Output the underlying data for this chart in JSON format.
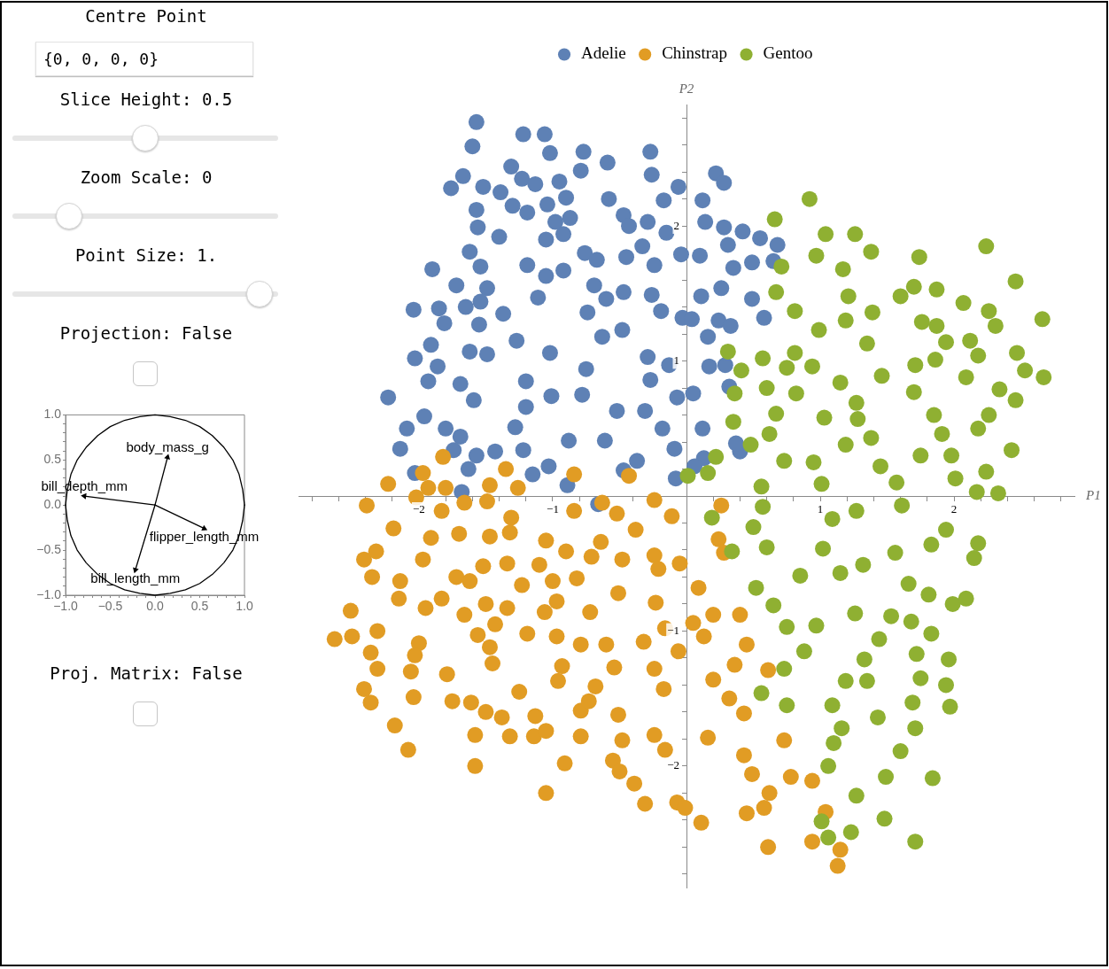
{
  "chart_data": [
    {
      "type": "other",
      "annotations": [
        "Centre Point",
        "{0, 0, 0, 0}",
        "Slice Height: 0.5",
        "Zoom Scale: 0",
        "Point Size: 1.",
        "Projection: False"
      ]
    },
    {
      "type": "line",
      "xlim": [
        -1,
        1
      ],
      "ylim": [
        -1,
        1
      ],
      "xticks": [
        {
          "value": -1,
          "label": "−1.0"
        },
        {
          "value": -0.9,
          "label": null
        },
        {
          "value": -0.8,
          "label": null
        },
        {
          "value": -0.7,
          "label": null
        },
        {
          "value": -0.6,
          "label": null
        },
        {
          "value": -0.5,
          "label": "−0.5"
        },
        {
          "value": -0.4,
          "label": null
        },
        {
          "value": -0.3,
          "label": null
        },
        {
          "value": -0.2,
          "label": null
        },
        {
          "value": -0.1,
          "label": null
        },
        {
          "value": 0,
          "label": "0.0"
        },
        {
          "value": 0.1,
          "label": null
        },
        {
          "value": 0.2,
          "label": null
        },
        {
          "value": 0.3,
          "label": null
        },
        {
          "value": 0.4,
          "label": null
        },
        0.5,
        {
          "value": 0.6,
          "label": null
        },
        {
          "value": 0.7,
          "label": null
        },
        {
          "value": 0.8,
          "label": null
        },
        {
          "value": 0.9,
          "label": null
        },
        {
          "value": 1,
          "label": "1.0"
        }
      ],
      "yticks": [
        {
          "value": -1,
          "label": "−1.0"
        },
        {
          "value": -0.9,
          "label": null
        },
        {
          "value": -0.8,
          "label": null
        },
        {
          "value": -0.7,
          "label": null
        },
        {
          "value": -0.6,
          "label": null
        },
        {
          "value": -0.5,
          "label": "−0.5"
        },
        {
          "value": -0.4,
          "label": null
        },
        {
          "value": -0.3,
          "label": null
        },
        {
          "value": -0.2,
          "label": null
        },
        {
          "value": -0.1,
          "label": null
        },
        {
          "value": 0,
          "label": "0.0"
        },
        {
          "value": 0.1,
          "label": null
        },
        {
          "value": 0.2,
          "label": null
        },
        {
          "value": 0.3,
          "label": null
        },
        {
          "value": 0.4,
          "label": null
        },
        0.5,
        {
          "value": 0.6,
          "label": null
        },
        {
          "value": 0.7,
          "label": null
        },
        {
          "value": 0.8,
          "label": null
        },
        {
          "value": 0.9,
          "label": null
        },
        {
          "value": 1,
          "label": "1.0"
        }
      ],
      "series": [
        {
          "color": "#000000",
          "x": [
            -1,
            -0.98,
            -0.94,
            -0.87,
            -0.77,
            -0.64,
            -0.5,
            -0.34,
            -0.17,
            0,
            0.17,
            0.34,
            0.5,
            0.64,
            0.77,
            0.87,
            0.94,
            0.98,
            1
          ],
          "values": [
            0,
            0.17,
            0.34,
            0.5,
            0.64,
            0.77,
            0.87,
            0.94,
            0.98,
            1,
            0.98,
            0.94,
            0.87,
            0.77,
            0.64,
            0.5,
            0.34,
            0.17,
            0
          ]
        },
        {
          "color": "#000000",
          "x": [
            -1,
            -0.98,
            -0.94,
            -0.87,
            -0.77,
            -0.64,
            -0.5,
            -0.34,
            -0.17,
            0,
            0.17,
            0.34,
            0.5,
            0.64,
            0.77,
            0.87,
            0.94,
            0.98,
            1
          ],
          "values": [
            0,
            -0.17,
            -0.34,
            -0.5,
            -0.64,
            -0.77,
            -0.87,
            -0.94,
            -0.98,
            -1,
            -0.98,
            -0.94,
            -0.87,
            -0.77,
            -0.64,
            -0.5,
            -0.34,
            -0.17,
            0
          ]
        },
        {
          "name": "body_mass_g",
          "color": "#000000",
          "x": [
            0,
            0.14
          ],
          "values": [
            0,
            0.53
          ]
        },
        {
          "name": "bill_depth_mm",
          "color": "#000000",
          "x": [
            0,
            -0.79
          ],
          "values": [
            0,
            0.1
          ]
        },
        {
          "name": "flipper_length_mm",
          "color": "#000000",
          "x": [
            0,
            0.55
          ],
          "values": [
            0,
            -0.26
          ]
        },
        {
          "name": "bill_length_mm",
          "color": "#000000",
          "x": [
            0,
            -0.22
          ],
          "values": [
            0,
            -0.72
          ]
        }
      ]
    },
    {
      "type": "other",
      "annotations": [
        "Proj. Matrix: False"
      ]
    },
    {
      "type": "scatter",
      "legend": "top",
      "marker": "circle",
      "xlabel": "P1",
      "ylabel": "P2",
      "xlim": [
        -2.9,
        2.9
      ],
      "ylim": [
        -2.9,
        2.9
      ],
      "xticks": [
        {
          "value": -2.8,
          "label": null
        },
        {
          "value": -2.6,
          "label": null
        },
        {
          "value": -2.4,
          "label": null
        },
        {
          "value": -2.2,
          "label": null
        },
        {
          "value": -2,
          "label": "−2"
        },
        {
          "value": -1.8,
          "label": null
        },
        {
          "value": -1.6,
          "label": null
        },
        {
          "value": -1.4,
          "label": null
        },
        {
          "value": -1.2,
          "label": null
        },
        {
          "value": -1,
          "label": "−1"
        },
        {
          "value": -0.8,
          "label": null
        },
        {
          "value": -0.6,
          "label": null
        },
        {
          "value": -0.4,
          "label": null
        },
        {
          "value": -0.2,
          "label": null
        },
        {
          "value": 0.2,
          "label": null
        },
        {
          "value": 0.4,
          "label": null
        },
        {
          "value": 0.6,
          "label": null
        },
        {
          "value": 0.8,
          "label": null
        },
        1,
        {
          "value": 1.2,
          "label": null
        },
        {
          "value": 1.4,
          "label": null
        },
        {
          "value": 1.6,
          "label": null
        },
        {
          "value": 1.8,
          "label": null
        },
        2,
        {
          "value": 2.2,
          "label": null
        },
        {
          "value": 2.4,
          "label": null
        },
        {
          "value": 2.6,
          "label": null
        },
        {
          "value": 2.8,
          "label": null
        }
      ],
      "yticks": [
        {
          "value": -2.8,
          "label": null
        },
        {
          "value": -2.6,
          "label": null
        },
        {
          "value": -2.4,
          "label": null
        },
        {
          "value": -2.2,
          "label": null
        },
        {
          "value": -2,
          "label": "−2"
        },
        {
          "value": -1.8,
          "label": null
        },
        {
          "value": -1.6,
          "label": null
        },
        {
          "value": -1.4,
          "label": null
        },
        {
          "value": -1.2,
          "label": null
        },
        {
          "value": -1,
          "label": "−1"
        },
        {
          "value": -0.8,
          "label": null
        },
        {
          "value": -0.6,
          "label": null
        },
        {
          "value": -0.4,
          "label": null
        },
        {
          "value": -0.2,
          "label": null
        },
        {
          "value": 0.2,
          "label": null
        },
        {
          "value": 0.4,
          "label": null
        },
        {
          "value": 0.6,
          "label": null
        },
        {
          "value": 0.8,
          "label": null
        },
        1,
        {
          "value": 1.2,
          "label": null
        },
        {
          "value": 1.4,
          "label": null
        },
        {
          "value": 1.6,
          "label": null
        },
        {
          "value": 1.8,
          "label": null
        },
        2,
        {
          "value": 2.2,
          "label": null
        },
        {
          "value": 2.4,
          "label": null
        },
        {
          "value": 2.6,
          "label": null
        },
        {
          "value": 2.8,
          "label": null
        }
      ],
      "series": [
        {
          "name": "Adelie",
          "color": "#5e81b5",
          "x": [
            -1.57,
            -1.6,
            -1.22,
            -1.06,
            -1.02,
            -0.77,
            -0.27,
            -0.59,
            -1.31,
            -0.79,
            -0.26,
            -1.67,
            -1.23,
            -1.76,
            -1.52,
            -1.39,
            -1.13,
            -0.95,
            -0.06,
            -1.57,
            -1.3,
            -1.19,
            -1.04,
            -0.9,
            -0.87,
            -0.58,
            -0.47,
            -0.17,
            -1.56,
            -1.4,
            -0.98,
            -0.92,
            -1.05,
            -0.43,
            -0.29,
            -0.15,
            -0.33,
            -1.62,
            -1.19,
            -1.54,
            -1.05,
            -0.92,
            -0.76,
            -0.67,
            -0.45,
            -0.24,
            -0.04,
            -1.9,
            -1.72,
            -1.49,
            -0.69,
            -0.47,
            -0.26,
            -2.04,
            -1.85,
            -1.65,
            -1.54,
            -1.37,
            -1.11,
            -0.74,
            -0.6,
            -0.19,
            -0.03,
            -1.81,
            -1.55,
            -0.63,
            -0.48,
            -1.91,
            -1.62,
            -1.49,
            -1.27,
            -1.02,
            -2.03,
            -1.86,
            -0.75,
            -0.29,
            -0.27,
            -0.13,
            -1.93,
            -1.69,
            -1.59,
            -1.2,
            -1.01,
            -0.78,
            -0.52,
            -0.07,
            -2.23,
            -1.96,
            -2.09,
            -1.8,
            -1.69,
            -1.28,
            -1.2,
            -0.31,
            -0.18,
            -2.14,
            -1.74,
            -1.57,
            -1.43,
            -1.22,
            -0.88,
            -0.61,
            -0.37,
            -0.09,
            -1.03,
            -2.03,
            -1.63,
            -1.15,
            -0.89,
            -0.47,
            -0.08,
            -1.68,
            0.22,
            0.28,
            0.12,
            0.14,
            0.28,
            0.42,
            0.55,
            0.68,
            0.31,
            0.1,
            0.35,
            0.49,
            0.65,
            0.11,
            0.26,
            0.49,
            0.04,
            0.24,
            0.33,
            0.58,
            0.16,
            0.17,
            0.29,
            0.32,
            0.05,
            0.12,
            0.4,
            0.37,
            0.13,
            0.06,
            -0.66
          ],
          "values": [
            2.77,
            2.59,
            2.68,
            2.68,
            2.54,
            2.55,
            2.55,
            2.47,
            2.44,
            2.41,
            2.38,
            2.37,
            2.35,
            2.28,
            2.29,
            2.25,
            2.31,
            2.33,
            2.29,
            2.12,
            2.15,
            2.1,
            2.16,
            2.21,
            2.06,
            2.2,
            2.08,
            2.19,
            1.99,
            1.92,
            2.03,
            1.94,
            1.9,
            2,
            2.03,
            1.95,
            1.85,
            1.81,
            1.71,
            1.7,
            1.63,
            1.67,
            1.8,
            1.75,
            1.77,
            1.71,
            1.79,
            1.68,
            1.56,
            1.54,
            1.56,
            1.51,
            1.49,
            1.38,
            1.39,
            1.4,
            1.44,
            1.35,
            1.47,
            1.36,
            1.46,
            1.37,
            1.32,
            1.28,
            1.27,
            1.18,
            1.23,
            1.12,
            1.07,
            1.05,
            1.15,
            1.06,
            1.02,
            0.96,
            0.94,
            1.03,
            0.86,
            0.97,
            0.85,
            0.83,
            0.71,
            0.85,
            0.74,
            0.75,
            0.63,
            0.73,
            0.73,
            0.59,
            0.5,
            0.5,
            0.44,
            0.51,
            0.66,
            0.63,
            0.5,
            0.35,
            0.34,
            0.3,
            0.33,
            0.34,
            0.41,
            0.41,
            0.26,
            0.35,
            0.22,
            0.17,
            0.2,
            0.16,
            0.08,
            0.19,
            0.13,
            0.03,
            2.39,
            2.32,
            2.19,
            2.03,
            1.99,
            1.96,
            1.91,
            1.86,
            1.86,
            1.78,
            1.69,
            1.73,
            1.74,
            1.48,
            1.54,
            1.46,
            1.31,
            1.3,
            1.26,
            1.32,
            1.18,
            0.96,
            0.97,
            0.81,
            0.76,
            0.5,
            0.33,
            0.39,
            0.28,
            0.22,
            -0.06
          ]
        },
        {
          "name": "Chinstrap",
          "color": "#e19c24",
          "x": [
            -1.82,
            -1.97,
            -2.23,
            -1.93,
            -1.8,
            -1.47,
            -1.35,
            -1.26,
            -0.84,
            -0.43,
            -2.39,
            -2.02,
            -1.66,
            -1.49,
            -1.83,
            -2.19,
            -1.7,
            -1.91,
            -1.47,
            -1.31,
            -0.84,
            -0.63,
            -0.52,
            -0.64,
            -0.38,
            -0.24,
            -0.11,
            -1.32,
            -1.05,
            -0.9,
            -0.71,
            -0.48,
            -0.24,
            -0.05,
            -0.21,
            -0.82,
            -2.41,
            -2.32,
            -2.35,
            -2.14,
            -1.97,
            -1.72,
            -1.62,
            -1.52,
            -1.34,
            -1.23,
            -1.1,
            -1,
            -0.97,
            -1.06,
            -1.5,
            -1.66,
            -1.34,
            -1.43,
            -1.83,
            -1.95,
            -2.15,
            -2.51,
            -2.63,
            -2.5,
            -2.31,
            -2,
            -2.03,
            -2.36,
            -2.31,
            -2.06,
            -1.79,
            -2.41,
            -2.36,
            -2.04,
            -2.18,
            -2.08,
            -1.58,
            -1.58,
            -1.75,
            -1.61,
            -1.5,
            -1.38,
            -1.32,
            -1.14,
            -1.05,
            -1.13,
            -1.05,
            -0.91,
            -1.56,
            -1.47,
            -1.45,
            -1.25,
            -1.19,
            -0.97,
            -0.93,
            -0.96,
            -0.79,
            -0.68,
            -0.6,
            -0.54,
            -0.32,
            -0.24,
            -0.06,
            -0.17,
            0.05,
            -0.16,
            -0.72,
            -0.51,
            -0.23,
            -0.79,
            -0.73,
            -0.51,
            -0.48,
            -0.79,
            -0.24,
            -0.16,
            -0.55,
            -0.5,
            -0.39,
            -0.31,
            -0.07,
            -0.01,
            0.26,
            0.24,
            0.28,
            0.09,
            0.2,
            0.13,
            0.4,
            0.45,
            0.36,
            0.2,
            0.32,
            0.43,
            0.61,
            0.16,
            0.43,
            0.73,
            0.49,
            0.78,
            0.94,
            0.62,
            0.58,
            0.45,
            1.04,
            0.11,
            0.61,
            0.94,
            1.15,
            1.13
          ],
          "values": [
            0.29,
            0.17,
            0.09,
            0.06,
            0.06,
            0.08,
            0.2,
            0.06,
            0.16,
            0.15,
            -0.07,
            -0.01,
            -0.05,
            -0.04,
            -0.11,
            -0.24,
            -0.28,
            -0.31,
            -0.3,
            -0.16,
            -0.11,
            -0.05,
            -0.13,
            -0.34,
            -0.25,
            -0.03,
            -0.15,
            -0.27,
            -0.33,
            -0.41,
            -0.45,
            -0.47,
            -0.44,
            -0.5,
            -0.54,
            -0.61,
            -0.47,
            -0.41,
            -0.6,
            -0.63,
            -0.47,
            -0.6,
            -0.63,
            -0.52,
            -0.5,
            -0.66,
            -0.51,
            -0.63,
            -0.78,
            -0.86,
            -0.8,
            -0.88,
            -0.83,
            -0.95,
            -0.76,
            -0.83,
            -0.76,
            -0.85,
            -1.06,
            -1.04,
            -1,
            -1.09,
            -1.18,
            -1.16,
            -1.28,
            -1.3,
            -1.32,
            -1.43,
            -1.53,
            -1.49,
            -1.7,
            -1.88,
            -1.77,
            -2,
            -1.52,
            -1.53,
            -1.6,
            -1.64,
            -1.78,
            -1.78,
            -1.74,
            -1.63,
            -2.2,
            -1.98,
            -1.03,
            -1.12,
            -1.24,
            -1.45,
            -1.02,
            -1.04,
            -1.26,
            -1.37,
            -1.1,
            -1.41,
            -1.1,
            -1.27,
            -1.08,
            -1.28,
            -1.15,
            -1.43,
            -0.94,
            -0.98,
            -0.86,
            -0.72,
            -0.79,
            -1.59,
            -1.52,
            -1.62,
            -1.81,
            -1.78,
            -1.77,
            -1.88,
            -1.96,
            -2.04,
            -2.13,
            -2.28,
            -2.27,
            -2.31,
            -0.07,
            -0.32,
            -0.42,
            -0.68,
            -0.88,
            -1.04,
            -0.88,
            -1.1,
            -1.25,
            -1.36,
            -1.5,
            -1.61,
            -1.29,
            -1.79,
            -1.92,
            -1.81,
            -2.06,
            -2.08,
            -2.11,
            -2.2,
            -2.31,
            -2.35,
            -2.34,
            -2.42,
            -2.6,
            -2.56,
            -2.62,
            -2.74
          ]
        },
        {
          "name": "Gentoo",
          "color": "#8fb032",
          "x": [
            0.92,
            0.66,
            1.04,
            1.26,
            1.38,
            0.97,
            0.71,
            1.17,
            1.74,
            1.87,
            1.7,
            2.24,
            2.46,
            0.67,
            0.81,
            1.21,
            1.39,
            1.6,
            1.76,
            1.87,
            2.07,
            2.26,
            2.31,
            2.66,
            0.31,
            0.57,
            0.81,
            0.99,
            0.94,
            1.19,
            1.35,
            0.75,
            0.41,
            1.15,
            1.46,
            1.71,
            1.86,
            1.94,
            2.12,
            2.18,
            2.47,
            2.53,
            2.67,
            2.09,
            2.34,
            2.46,
            0.36,
            0.6,
            0.82,
            0.35,
            0.67,
            1.03,
            1.27,
            1.28,
            1.7,
            1.85,
            2.26,
            0.62,
            0.48,
            0.22,
            0.16,
            0.73,
            0.95,
            1.01,
            1.19,
            1.38,
            1.91,
            1.98,
            2.18,
            2.43,
            1.45,
            1.75,
            1.57,
            2.01,
            2.24,
            0.56,
            0.01,
            2.17,
            2.33,
            0.19,
            0.34,
            0.5,
            0.57,
            0.6,
            0.52,
            0.65,
            0.85,
            1.15,
            1.02,
            1.09,
            1.27,
            1.61,
            1.56,
            1.83,
            1.94,
            2.18,
            2.15,
            1.32,
            1.26,
            1.53,
            1.66,
            1.81,
            1.68,
            1.99,
            2.09,
            1.83,
            0.75,
            0.97,
            0.73,
            0.88,
            1.19,
            1.35,
            1.33,
            1.44,
            1.75,
            1.72,
            1.96,
            1.94,
            1.97,
            1.69,
            0.56,
            0.75,
            1.09,
            1.43,
            1.16,
            1.1,
            1.6,
            1.71,
            1.06,
            1.49,
            1.84,
            1.27,
            1.01,
            1.06,
            1.23,
            1.48,
            1.71
          ],
          "values": [
            2.2,
            2.05,
            1.94,
            1.94,
            1.81,
            1.78,
            1.7,
            1.68,
            1.77,
            1.53,
            1.55,
            1.85,
            1.59,
            1.51,
            1.37,
            1.48,
            1.36,
            1.48,
            1.29,
            1.26,
            1.43,
            1.37,
            1.26,
            1.31,
            1.07,
            1.02,
            1.06,
            1.23,
            0.96,
            1.3,
            1.13,
            0.95,
            0.93,
            0.84,
            0.89,
            0.97,
            1.01,
            1.14,
            1.15,
            1.04,
            1.06,
            0.93,
            0.88,
            0.88,
            0.79,
            0.71,
            0.76,
            0.8,
            0.76,
            0.55,
            0.61,
            0.58,
            0.69,
            0.57,
            0.77,
            0.6,
            0.6,
            0.46,
            0.38,
            0.29,
            0.17,
            0.26,
            0.25,
            0.09,
            0.38,
            0.43,
            0.46,
            0.3,
            0.5,
            0.34,
            0.22,
            0.3,
            0.1,
            0.13,
            0.18,
            0.07,
            0.15,
            0.03,
            0.02,
            -0.16,
            -0.41,
            -0.23,
            -0.08,
            -0.38,
            -0.68,
            -0.81,
            -0.59,
            -0.57,
            -0.39,
            -0.17,
            -0.11,
            -0.07,
            -0.42,
            -0.36,
            -0.25,
            -0.35,
            -0.46,
            -0.51,
            -0.87,
            -0.89,
            -0.65,
            -0.73,
            -0.93,
            -0.8,
            -0.76,
            -1.02,
            -0.97,
            -0.96,
            -1.28,
            -1.15,
            -1.37,
            -1.37,
            -1.21,
            -1.06,
            -1.35,
            -1.17,
            -1.21,
            -1.4,
            -1.56,
            -1.53,
            -1.46,
            -1.55,
            -1.55,
            -1.64,
            -1.72,
            -1.83,
            -1.89,
            -1.72,
            -2,
            -2.08,
            -2.09,
            -2.22,
            -2.41,
            -2.53,
            -2.49,
            -2.39,
            -2.56
          ]
        }
      ]
    }
  ]
}
